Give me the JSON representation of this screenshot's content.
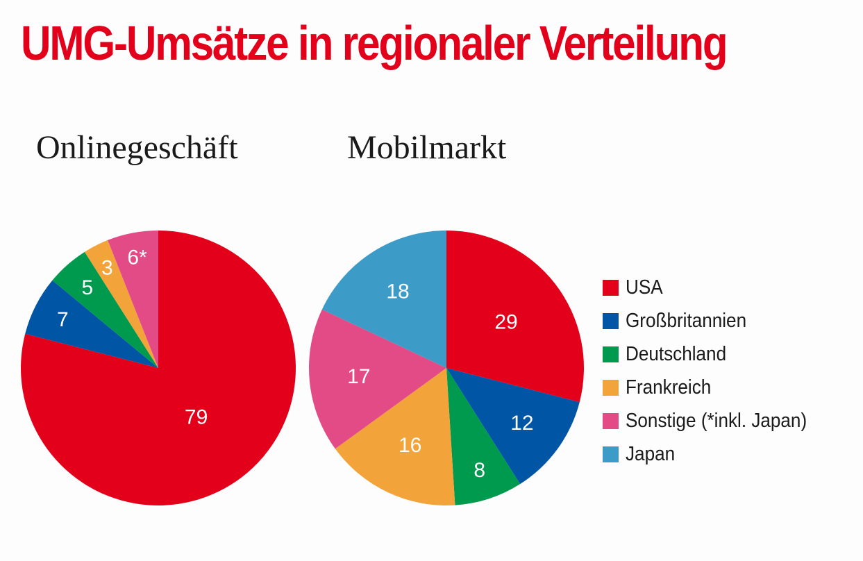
{
  "colors": {
    "title": "#e2001a",
    "USA": "#e2001a",
    "Großbritannien": "#0055a5",
    "Deutschland": "#009a4e",
    "Frankreich": "#f2a33a",
    "Sonstige": "#e24b86",
    "Japan": "#3d9bc7"
  },
  "title": "UMG-Umsätze in regionaler Verteilung",
  "legend": [
    {
      "key": "USA",
      "label": "USA"
    },
    {
      "key": "Großbritannien",
      "label": "Großbritannien"
    },
    {
      "key": "Deutschland",
      "label": "Deutschland"
    },
    {
      "key": "Frankreich",
      "label": "Frankreich"
    },
    {
      "key": "Sonstige",
      "label": "Sonstige (*inkl. Japan)"
    },
    {
      "key": "Japan",
      "label": "Japan"
    }
  ],
  "chart_data": [
    {
      "type": "pie",
      "title": "Onlinegeschäft",
      "slices": [
        {
          "category": "USA",
          "value": 79,
          "label": "79"
        },
        {
          "category": "Großbritannien",
          "value": 7,
          "label": "7"
        },
        {
          "category": "Deutschland",
          "value": 5,
          "label": "5"
        },
        {
          "category": "Frankreich",
          "value": 3,
          "label": "3"
        },
        {
          "category": "Sonstige",
          "value": 6,
          "label": "6*"
        }
      ]
    },
    {
      "type": "pie",
      "title": "Mobilmarkt",
      "slices": [
        {
          "category": "USA",
          "value": 29,
          "label": "29"
        },
        {
          "category": "Großbritannien",
          "value": 12,
          "label": "12"
        },
        {
          "category": "Deutschland",
          "value": 8,
          "label": "8"
        },
        {
          "category": "Frankreich",
          "value": 16,
          "label": "16"
        },
        {
          "category": "Sonstige",
          "value": 17,
          "label": "17"
        },
        {
          "category": "Japan",
          "value": 18,
          "label": "18"
        }
      ]
    }
  ]
}
